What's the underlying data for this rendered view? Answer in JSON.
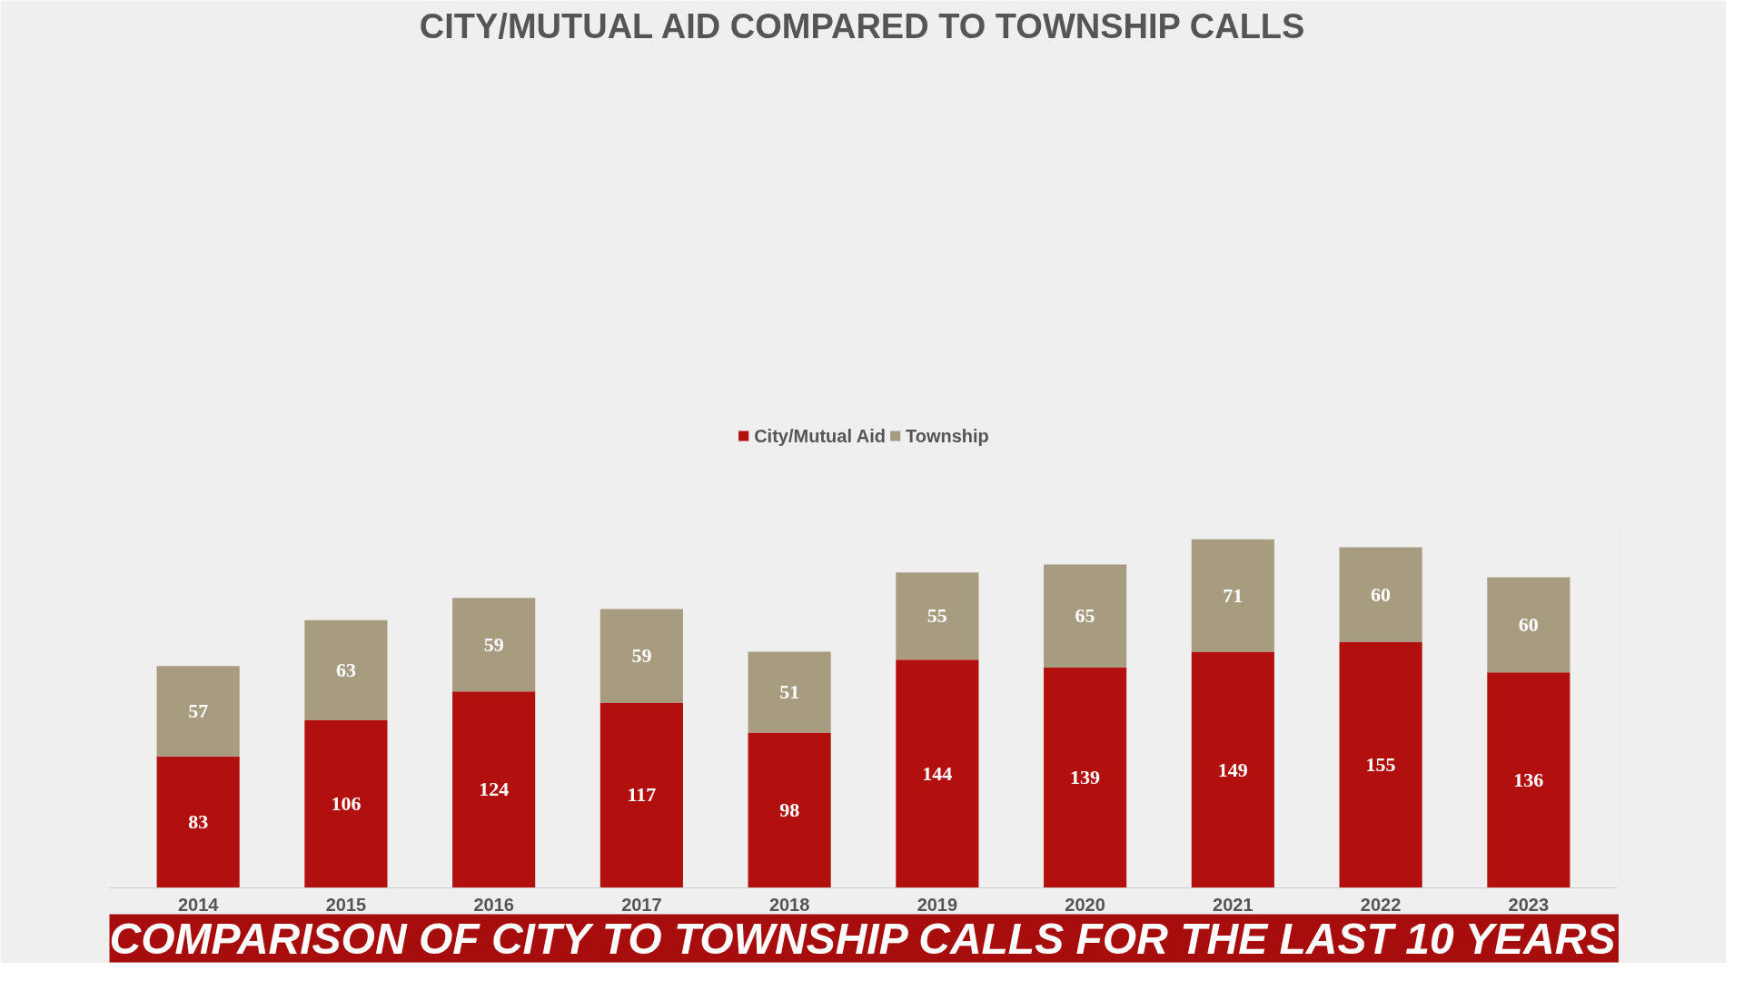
{
  "chart_data": {
    "type": "bar",
    "stacked": true,
    "title": "CITY/MUTUAL AID COMPARED TO TOWNSHIP CALLS",
    "annotations": [
      "COMPARISON OF CITY TO TOWNSHIP CALLS FOR THE LAST 10 YEARS"
    ],
    "categories": [
      "2014",
      "2015",
      "2016",
      "2017",
      "2018",
      "2019",
      "2020",
      "2021",
      "2022",
      "2023"
    ],
    "series": [
      {
        "name": "City/Mutual Aid",
        "color": "#b20f0f",
        "values": [
          83,
          106,
          124,
          117,
          98,
          144,
          139,
          149,
          155,
          136
        ]
      },
      {
        "name": "Township",
        "color": "#a89c80",
        "values": [
          57,
          63,
          59,
          59,
          51,
          55,
          65,
          71,
          60,
          60
        ]
      }
    ],
    "data_labels": true,
    "legend": "top",
    "grid": false
  }
}
